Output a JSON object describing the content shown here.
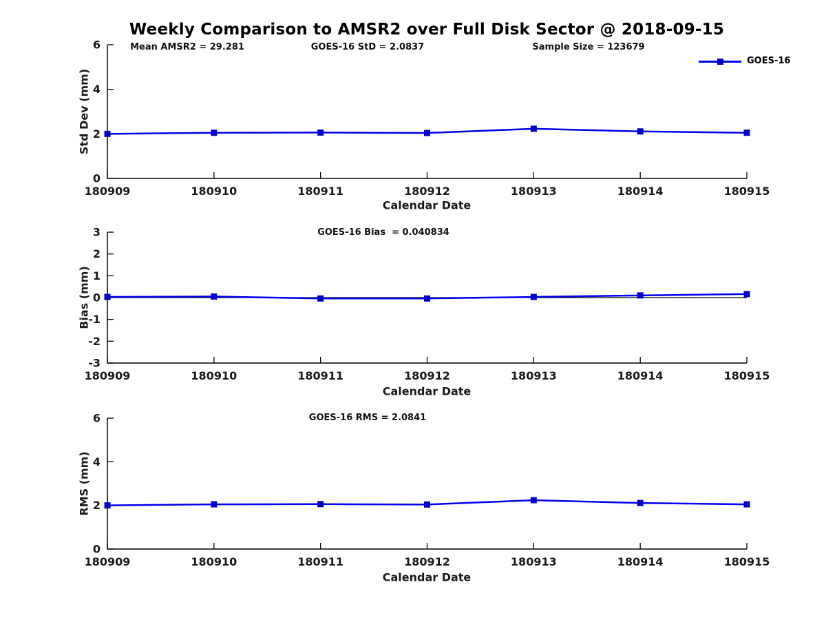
{
  "title": "Weekly Comparison to AMSR2 over Full Disk Sector @ 2018-09-15",
  "legend": {
    "label": "GOES-16"
  },
  "colors": {
    "line": "#0000ee",
    "marker": "#0000c8",
    "axis": "#000000",
    "zero_line": "#000000",
    "text": "#1a1a1a",
    "background": "#ffffff"
  },
  "annotations": {
    "mean_amsr2": "Mean AMSR2 = 29.281",
    "goes16_std": "GOES-16 StD = 2.0837",
    "sample_size": "Sample Size = 123679",
    "goes16_bias": "GOES-16 Bias  = 0.040834",
    "goes16_rms": "GOES-16 RMS = 2.0841"
  },
  "chart_data": [
    {
      "type": "line",
      "categories": [
        "180909",
        "180910",
        "180911",
        "180912",
        "180913",
        "180914",
        "180915"
      ],
      "series": [
        {
          "name": "GOES-16",
          "values": [
            2.0,
            2.05,
            2.06,
            2.04,
            2.23,
            2.11,
            2.05
          ]
        }
      ],
      "title": "",
      "xlabel": "Calendar Date",
      "ylabel": "Std Dev (mm)",
      "ylim": [
        0,
        6
      ],
      "yticks": [
        0,
        2,
        4,
        6
      ],
      "zero_line": false,
      "grid": false,
      "marker": "square",
      "legend_position": "outside-top-right"
    },
    {
      "type": "line",
      "categories": [
        "180909",
        "180910",
        "180911",
        "180912",
        "180913",
        "180914",
        "180915"
      ],
      "series": [
        {
          "name": "GOES-16",
          "values": [
            0.03,
            0.05,
            -0.04,
            -0.04,
            0.03,
            0.1,
            0.16
          ]
        }
      ],
      "title": "",
      "xlabel": "Calendar Date",
      "ylabel": "Bias (mm)",
      "ylim": [
        -3,
        3
      ],
      "yticks": [
        -3,
        -2,
        -1,
        0,
        1,
        2,
        3
      ],
      "zero_line": true,
      "grid": false,
      "marker": "square",
      "legend_position": "none"
    },
    {
      "type": "line",
      "categories": [
        "180909",
        "180910",
        "180911",
        "180912",
        "180913",
        "180914",
        "180915"
      ],
      "series": [
        {
          "name": "GOES-16",
          "values": [
            2.0,
            2.05,
            2.06,
            2.04,
            2.24,
            2.11,
            2.05
          ]
        }
      ],
      "title": "",
      "xlabel": "Calendar Date",
      "ylabel": "RMS (mm)",
      "ylim": [
        0,
        6
      ],
      "yticks": [
        0,
        2,
        4,
        6
      ],
      "zero_line": false,
      "grid": false,
      "marker": "square",
      "legend_position": "none"
    }
  ]
}
